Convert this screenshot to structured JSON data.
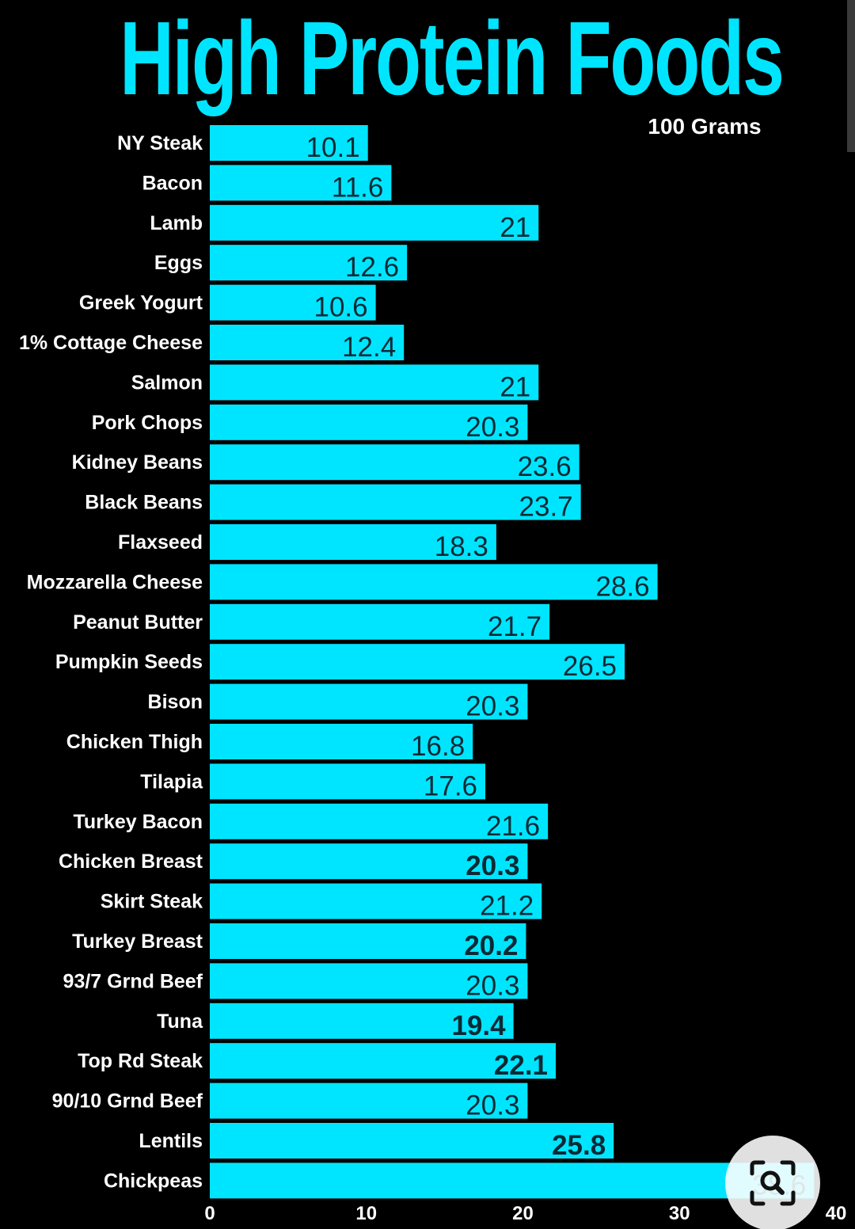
{
  "chart_data": {
    "type": "bar",
    "orientation": "horizontal",
    "title": "High Protein Foods",
    "subtitle": "100 Grams",
    "categories": [
      "NY Steak",
      "Bacon",
      "Lamb",
      "Eggs",
      "Greek Yogurt",
      "1% Cottage Cheese",
      "Salmon",
      "Pork Chops",
      "Kidney Beans",
      "Black Beans",
      "Flaxseed",
      "Mozzarella Cheese",
      "Peanut Butter",
      "Pumpkin Seeds",
      "Bison",
      "Chicken Thigh",
      "Tilapia",
      "Turkey Bacon",
      "Chicken Breast",
      "Skirt Steak",
      "Turkey Breast",
      "93/7 Grnd Beef",
      "Tuna",
      "Top Rd Steak",
      "90/10 Grnd Beef",
      "Lentils",
      "Chickpeas"
    ],
    "values": [
      10.1,
      11.6,
      21,
      12.6,
      10.6,
      12.4,
      21,
      20.3,
      23.6,
      23.7,
      18.3,
      28.6,
      21.7,
      26.5,
      20.3,
      16.8,
      17.6,
      21.6,
      20.3,
      21.2,
      20.2,
      20.3,
      19.4,
      22.1,
      20.3,
      25.8,
      38.6
    ],
    "value_labels": [
      "10.1",
      "11.6",
      "21",
      "12.6",
      "10.6",
      "12.4",
      "21",
      "20.3",
      "23.6",
      "23.7",
      "18.3",
      "28.6",
      "21.7",
      "26.5",
      "20.3",
      "16.8",
      "17.6",
      "21.6",
      "20.3",
      "21.2",
      "20.2",
      "20.3",
      "19.4",
      "22.1",
      "20.3",
      "25.8",
      "38.6"
    ],
    "bold_labels": [
      18,
      20,
      22,
      23,
      25
    ],
    "xlim": [
      0,
      40
    ],
    "xticks": [
      "0",
      "10",
      "20",
      "30",
      "40"
    ],
    "xlabel": "",
    "ylabel": "",
    "grid": false,
    "legend": "none",
    "colors": {
      "bar": "#00e5ff",
      "title": "#00e5ff",
      "background": "#000000",
      "category_text": "#ffffff",
      "value_text": "#0a2a35",
      "tick_text": "#ffffff"
    }
  },
  "overlay": {
    "lens_icon": "visual-search-icon"
  }
}
